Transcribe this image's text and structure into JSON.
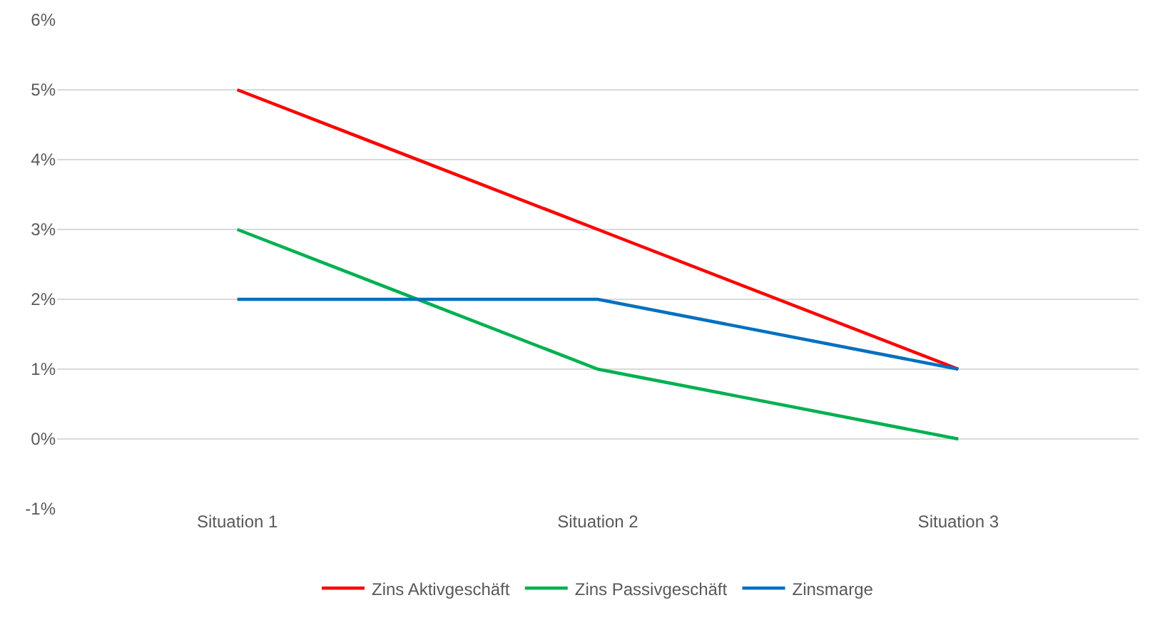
{
  "chart_data": {
    "type": "line",
    "categories": [
      "Situation 1",
      "Situation 2",
      "Situation 3"
    ],
    "series": [
      {
        "name": "Zins Aktivgeschäft",
        "color": "#ff0000",
        "values": [
          5,
          3,
          1
        ]
      },
      {
        "name": "Zins Passivgeschäft",
        "color": "#00b050",
        "values": [
          3,
          1,
          0
        ]
      },
      {
        "name": "Zinsmarge",
        "color": "#0070c0",
        "values": [
          2,
          2,
          1
        ]
      }
    ],
    "ylim": [
      -1,
      6
    ],
    "yticks": [
      {
        "value": -1,
        "label": "-1%"
      },
      {
        "value": 0,
        "label": "0%"
      },
      {
        "value": 1,
        "label": "1%"
      },
      {
        "value": 2,
        "label": "2%"
      },
      {
        "value": 3,
        "label": "3%"
      },
      {
        "value": 4,
        "label": "4%"
      },
      {
        "value": 5,
        "label": "5%"
      },
      {
        "value": 6,
        "label": "6%"
      }
    ],
    "grid": "y",
    "legend": "bottom",
    "marker": "none",
    "line_style": "solid"
  }
}
